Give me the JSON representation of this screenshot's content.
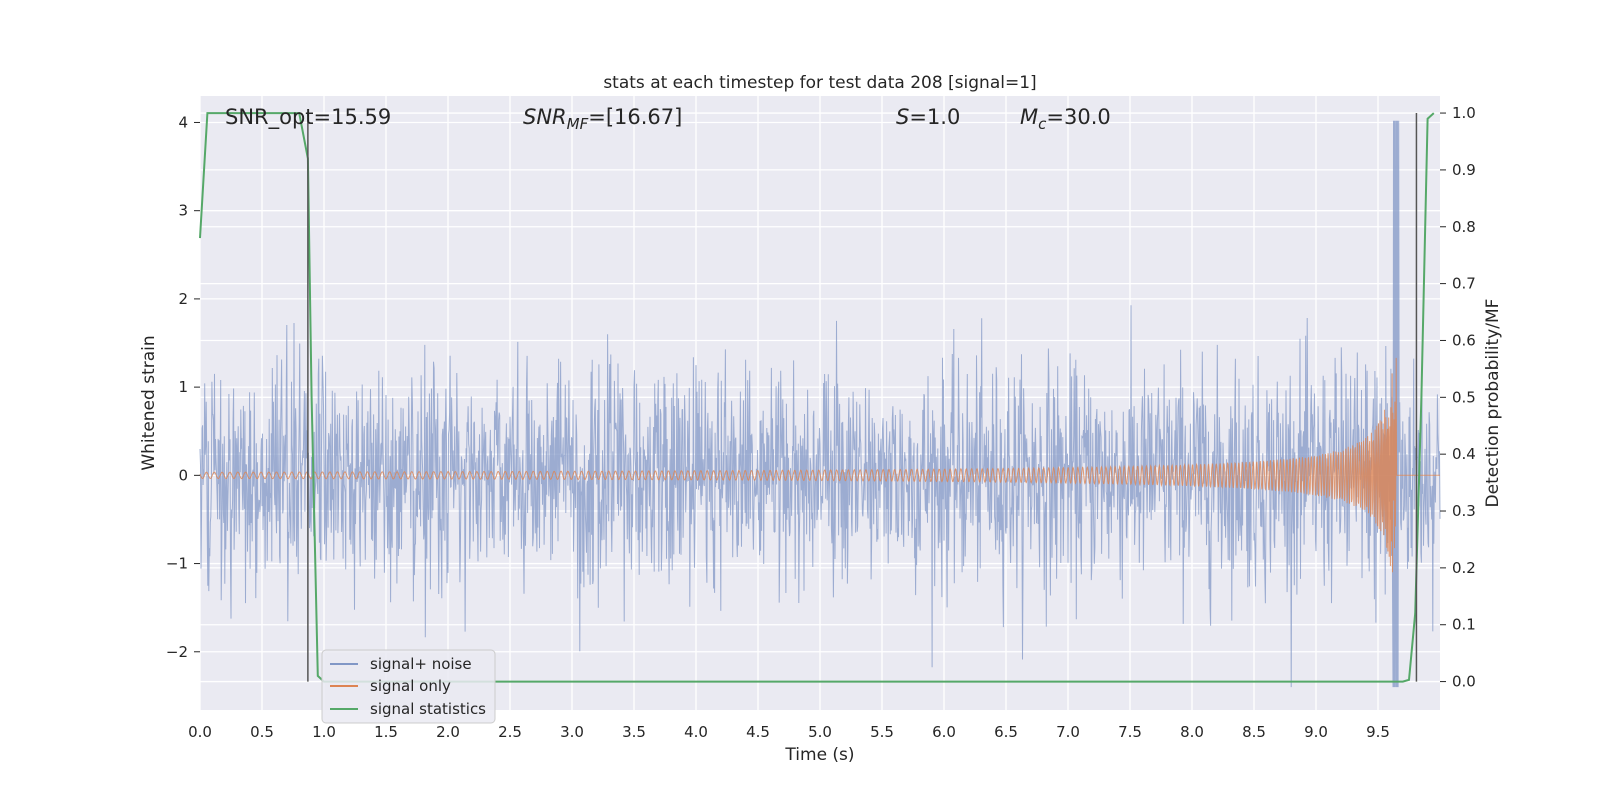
{
  "chart_data": {
    "type": "line",
    "title": "stats at each timestep for test data 208 [signal=1]",
    "xlabel": "Time (s)",
    "ylabel_left": "Whitened strain",
    "ylabel_right": "Detection probability/MF",
    "xlim": [
      0.0,
      10.0
    ],
    "ylim_left": [
      -2.66,
      4.3
    ],
    "ylim_right": [
      -0.05,
      1.03
    ],
    "x_ticks": [
      "0.0",
      "0.5",
      "1.0",
      "1.5",
      "2.0",
      "2.5",
      "3.0",
      "3.5",
      "4.0",
      "4.5",
      "5.0",
      "5.5",
      "6.0",
      "6.5",
      "7.0",
      "7.5",
      "8.0",
      "8.5",
      "9.0",
      "9.5"
    ],
    "y_left_ticks": [
      {
        "v": 4,
        "t": "4"
      },
      {
        "v": 3,
        "t": "3"
      },
      {
        "v": 2,
        "t": "2"
      },
      {
        "v": 1,
        "t": "1"
      },
      {
        "v": 0,
        "t": "0"
      },
      {
        "v": -1,
        "t": "−1"
      },
      {
        "v": -2,
        "t": "−2"
      }
    ],
    "y_right_ticks": [
      "0.0",
      "0.1",
      "0.2",
      "0.3",
      "0.4",
      "0.5",
      "0.6",
      "0.7",
      "0.8",
      "0.9",
      "1.0"
    ],
    "annotations": {
      "snr_opt": "SNR_opt=15.59",
      "snr_mf_sym": "SNR",
      "snr_mf_sub": "MF",
      "snr_mf_val": "=[16.67]",
      "s_sym": "S",
      "s_val": "=1.0",
      "mc_sym": "M",
      "mc_sub": "c",
      "mc_val": "=30.0"
    },
    "grid": true,
    "legend_position": "lower-left",
    "series": [
      {
        "name": "signal+ noise",
        "color": "#8197c6",
        "axis": "left",
        "description_values": {
          "typical_range": [
            -1.4,
            1.5
          ],
          "max": 4.02,
          "min": -2.4
        }
      },
      {
        "name": "signal only",
        "color": "#dd8452",
        "axis": "left",
        "chirp_end_time": 9.65,
        "chirp_peak_amplitude": 2.05
      },
      {
        "name": "signal statistics",
        "color": "#55a868",
        "axis": "right",
        "x": [
          0.0,
          0.06,
          0.12,
          0.4,
          0.8,
          0.87,
          0.9,
          0.95,
          1.0,
          2.0,
          4.0,
          6.0,
          8.0,
          9.0,
          9.6,
          9.7,
          9.75,
          9.8,
          9.85,
          9.9,
          9.95
        ],
        "y": [
          0.78,
          1.0,
          1.0,
          1.0,
          1.0,
          0.92,
          0.5,
          0.01,
          0.0,
          0.0,
          0.0,
          0.0,
          0.0,
          0.0,
          0.0,
          0.0,
          0.003,
          0.12,
          0.5,
          0.99,
          1.0
        ]
      }
    ],
    "vertical_markers": [
      0.87,
      9.81
    ]
  }
}
